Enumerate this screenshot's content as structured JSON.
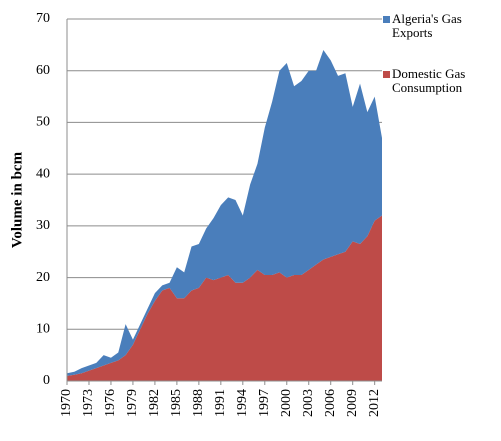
{
  "chart_data": {
    "type": "stacked-area",
    "y_label": "Volume in bcm",
    "x": [
      1970,
      1971,
      1972,
      1973,
      1974,
      1975,
      1976,
      1977,
      1978,
      1979,
      1980,
      1981,
      1982,
      1983,
      1984,
      1985,
      1986,
      1987,
      1988,
      1989,
      1990,
      1991,
      1992,
      1993,
      1994,
      1995,
      1996,
      1997,
      1998,
      1999,
      2000,
      2001,
      2002,
      2003,
      2004,
      2005,
      2006,
      2007,
      2008,
      2009,
      2010,
      2011,
      2012,
      2013
    ],
    "series": [
      {
        "name": "Algeria's Gas Exports",
        "color": "#4a7ebb",
        "values": [
          0.5,
          0.6,
          1,
          1,
          1,
          2,
          1,
          1.5,
          6,
          1,
          1,
          1,
          1.5,
          1,
          1,
          6,
          5,
          8.5,
          8.5,
          9.5,
          12,
          14,
          15,
          16,
          13,
          18,
          20.5,
          28.5,
          33.5,
          39,
          41.5,
          36.5,
          37.5,
          38.5,
          37.5,
          40.5,
          38,
          34.5,
          34.5,
          26,
          31,
          24,
          24,
          15
        ]
      },
      {
        "name": "Domestic Gas Consumption",
        "color": "#be4b48",
        "values": [
          1,
          1.2,
          1.5,
          2,
          2.5,
          3,
          3.5,
          4,
          5,
          7,
          10,
          13,
          15.5,
          17.5,
          18,
          16,
          16,
          17.5,
          18,
          20,
          19.5,
          20,
          20.5,
          19,
          19,
          20,
          21.5,
          20.5,
          20.5,
          21,
          20,
          20.5,
          20.5,
          21.5,
          22.5,
          23.5,
          24,
          24.5,
          25,
          27,
          26.5,
          28,
          31,
          32
        ]
      }
    ],
    "xlim": [
      1970,
      2013
    ],
    "xticks": [
      1970,
      1973,
      1976,
      1979,
      1982,
      1985,
      1988,
      1991,
      1994,
      1997,
      2000,
      2003,
      2006,
      2009,
      2012
    ],
    "ylim": [
      0,
      70
    ],
    "yticks": [
      0,
      10,
      20,
      30,
      40,
      50,
      60,
      70
    ],
    "grid": true
  }
}
